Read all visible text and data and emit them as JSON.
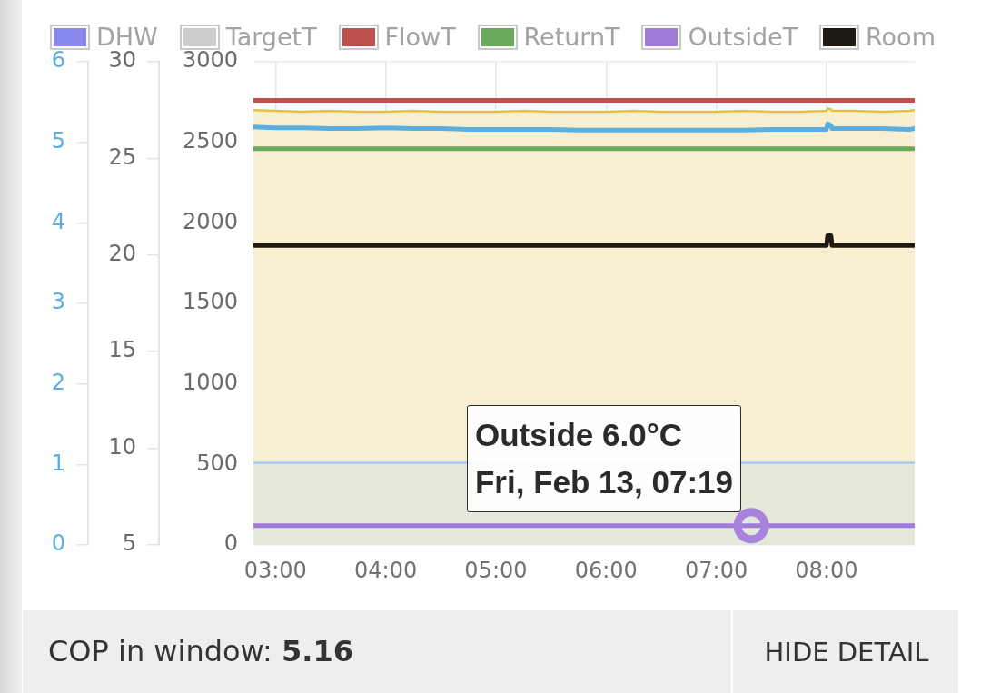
{
  "chart_data": {
    "type": "line",
    "x": [
      2.8,
      3,
      3.25,
      3.5,
      3.75,
      4,
      4.25,
      4.5,
      4.75,
      5,
      5.25,
      5.5,
      5.75,
      6,
      6.25,
      6.5,
      6.75,
      7,
      7.25,
      7.5,
      7.75,
      8,
      8.01,
      8.04,
      8.05,
      8.25,
      8.5,
      8.75,
      8.8
    ],
    "series": [
      {
        "type": "scatter",
        "color": "#a783dd",
        "axis": "y2",
        "marker": "circle",
        "x": [
          7.3167
        ],
        "values": [
          6.0
        ]
      },
      {
        "name": "DHW",
        "color": "#8888ee",
        "axis": "y2",
        "values": [
          null,
          null,
          null,
          null,
          null,
          null,
          null,
          null,
          null,
          null,
          null,
          null,
          null,
          null,
          null,
          null,
          null,
          null,
          null,
          null,
          null,
          null,
          null,
          null,
          null,
          null,
          null,
          null,
          null
        ]
      },
      {
        "name": "TargetT",
        "color": "#cccccc",
        "axis": "y2",
        "values": [
          null,
          null,
          null,
          null,
          null,
          null,
          null,
          null,
          null,
          null,
          null,
          null,
          null,
          null,
          null,
          null,
          null,
          null,
          null,
          null,
          null,
          null,
          null,
          null,
          null,
          null,
          null,
          null,
          null
        ]
      },
      {
        "name": "FlowT",
        "color": "#c0504d",
        "axis": "y2",
        "values": [
          28,
          28,
          28,
          28,
          28,
          28,
          28,
          28,
          28,
          28,
          28,
          28,
          28,
          28,
          28,
          28,
          28,
          28,
          28,
          28,
          28,
          28,
          28,
          28,
          28,
          28,
          28,
          28,
          28
        ]
      },
      {
        "name": "ReturnT",
        "color": "#6aa85b",
        "axis": "y2",
        "values": [
          25.5,
          25.5,
          25.5,
          25.5,
          25.5,
          25.5,
          25.5,
          25.5,
          25.5,
          25.5,
          25.5,
          25.5,
          25.5,
          25.5,
          25.5,
          25.5,
          25.5,
          25.5,
          25.5,
          25.5,
          25.5,
          25.5,
          25.5,
          25.5,
          25.5,
          25.5,
          25.5,
          25.5,
          25.5
        ]
      },
      {
        "name": "OutsideT",
        "color": "#a07bd9",
        "axis": "y2",
        "values": [
          6,
          6,
          6,
          6,
          6,
          6,
          6,
          6,
          6,
          6,
          6,
          6,
          6,
          6,
          6,
          6,
          6,
          6,
          6,
          6,
          6,
          6,
          6,
          6,
          6,
          6,
          6,
          6,
          6
        ]
      },
      {
        "name": "Room",
        "color": "#1e1a12",
        "axis": "y2",
        "values": [
          20.5,
          20.5,
          20.5,
          20.5,
          20.5,
          20.5,
          20.5,
          20.5,
          20.5,
          20.5,
          20.5,
          20.5,
          20.5,
          20.5,
          20.5,
          20.5,
          20.5,
          20.5,
          20.5,
          20.5,
          20.5,
          20.5,
          21,
          21,
          20.5,
          20.5,
          20.5,
          20.5,
          20.5
        ]
      },
      {
        "color": "#5aafe0",
        "axis": "y3",
        "values": [
          5.19,
          5.18,
          5.18,
          5.17,
          5.17,
          5.18,
          5.17,
          5.17,
          5.16,
          5.16,
          5.16,
          5.16,
          5.15,
          5.15,
          5.15,
          5.15,
          5.15,
          5.15,
          5.15,
          5.16,
          5.16,
          5.16,
          5.23,
          5.21,
          5.17,
          5.17,
          5.17,
          5.16,
          5.17
        ]
      },
      {
        "type": "area",
        "color": "#a8cdee",
        "values": [
          510,
          510,
          510,
          510,
          510,
          510,
          510,
          510,
          null,
          null,
          null,
          null,
          null,
          null,
          null,
          null,
          null,
          null,
          510,
          510,
          510,
          510,
          510,
          510,
          510,
          510,
          510,
          510,
          510
        ]
      },
      {
        "type": "area",
        "color": "#e2c04a",
        "values": [
          2700,
          2695,
          2690,
          2695,
          2690,
          2690,
          2695,
          2690,
          2690,
          2690,
          2695,
          2690,
          2690,
          2690,
          2695,
          2690,
          2690,
          2690,
          2695,
          2690,
          2690,
          2695,
          2710,
          2705,
          2695,
          2695,
          2690,
          2695,
          2700
        ]
      }
    ],
    "xlim": [
      2.8,
      8.8
    ],
    "xticks": [
      {
        "value": 3,
        "label": "03:00"
      },
      {
        "value": 4,
        "label": "04:00"
      },
      {
        "value": 5,
        "label": "05:00"
      },
      {
        "value": 6,
        "label": "06:00"
      },
      {
        "value": 7,
        "label": "07:00"
      },
      {
        "value": 8,
        "label": "08:00"
      }
    ],
    "ylim": [
      0,
      3000
    ],
    "yticks": [
      0,
      500,
      1000,
      1500,
      2000,
      2500,
      3000
    ],
    "y2lim": [
      5,
      30
    ],
    "y2ticks": [
      5,
      10,
      15,
      20,
      25,
      30
    ],
    "y3lim": [
      0,
      6
    ],
    "y3ticks": [
      0,
      1,
      2,
      3,
      4,
      5,
      6
    ],
    "grid": true,
    "legend": "top",
    "marker": "none",
    "annotations": [
      "Outside 6.0°C",
      "Fri, Feb 13, 07:19",
      "COP in window: 5.16",
      "HIDE DETAIL"
    ]
  }
}
